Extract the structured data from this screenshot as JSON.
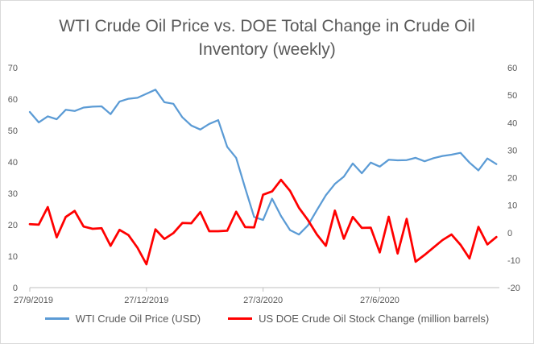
{
  "chart_data": {
    "type": "line",
    "title": "WTI Crude Oil Price vs. DOE Total Change in Crude Oil Inventory (weekly)",
    "title_lines": [
      "WTI Crude Oil Price vs. DOE Total Change in Crude Oil",
      "Inventory (weekly)"
    ],
    "x_tick_labels": [
      "27/9/2019",
      "27/12/2019",
      "27/3/2020",
      "27/6/2020"
    ],
    "x_tick_weeks": [
      0,
      13,
      26,
      39
    ],
    "y_left": {
      "range": [
        0,
        70
      ],
      "ticks": [
        "0",
        "10",
        "20",
        "30",
        "40",
        "50",
        "60",
        "70"
      ]
    },
    "y_right": {
      "range": [
        -20,
        60
      ],
      "ticks": [
        "-20",
        "-10",
        "0",
        "10",
        "20",
        "30",
        "40",
        "50",
        "60"
      ]
    },
    "grid": false,
    "legend_position": "bottom",
    "series": [
      {
        "name": "WTI Crude Oil Price (USD)",
        "axis": "left",
        "color": "#5b9bd5",
        "values": [
          55.9,
          52.6,
          54.5,
          53.6,
          56.6,
          56.2,
          57.3,
          57.6,
          57.7,
          55.2,
          59.2,
          60.1,
          60.4,
          61.7,
          63.0,
          59.0,
          58.5,
          54.2,
          51.6,
          50.3,
          52.1,
          53.3,
          44.8,
          41.3,
          31.7,
          22.5,
          21.5,
          28.3,
          22.8,
          18.3,
          16.9,
          19.8,
          24.7,
          29.4,
          33.0,
          35.3,
          39.5,
          36.4,
          39.8,
          38.5,
          40.7,
          40.5,
          40.6,
          41.3,
          40.2,
          41.2,
          41.9,
          42.3,
          42.9,
          39.8,
          37.3,
          41.1,
          39.3
        ]
      },
      {
        "name": "US DOE Crude Oil Stock Change (million barrels)",
        "axis": "right",
        "color": "#ff0000",
        "values": [
          3.1,
          2.9,
          9.3,
          -1.7,
          5.7,
          7.9,
          2.2,
          1.4,
          1.6,
          -4.8,
          1.0,
          -0.9,
          -5.5,
          -11.5,
          1.2,
          -2.3,
          -0.2,
          3.5,
          3.4,
          7.5,
          0.5,
          0.5,
          0.7,
          7.6,
          2.0,
          1.9,
          13.8,
          15.0,
          19.2,
          15.2,
          9.0,
          4.6,
          -0.7,
          -4.8,
          8.0,
          -2.2,
          5.7,
          1.7,
          1.8,
          -7.2,
          5.8,
          -7.6,
          5.0,
          -10.6,
          -8.1,
          -5.4,
          -2.7,
          -0.7,
          -4.4,
          -9.4,
          2.1,
          -4.3,
          -1.6
        ]
      }
    ]
  }
}
